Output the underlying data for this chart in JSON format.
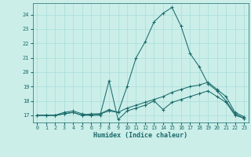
{
  "xlabel": "Humidex (Indice chaleur)",
  "background_color": "#cbeee9",
  "grid_color": "#a8ddd8",
  "line_color": "#1a6b6b",
  "xlim": [
    -0.5,
    23.5
  ],
  "ylim": [
    16.5,
    24.8
  ],
  "yticks": [
    17,
    18,
    19,
    20,
    21,
    22,
    23,
    24
  ],
  "xticks": [
    0,
    1,
    2,
    3,
    4,
    5,
    6,
    7,
    8,
    9,
    10,
    11,
    12,
    13,
    14,
    15,
    16,
    17,
    18,
    19,
    20,
    21,
    22,
    23
  ],
  "series": [
    {
      "x": [
        0,
        1,
        2,
        3,
        4,
        5,
        6,
        7,
        8,
        9,
        10,
        11,
        12,
        13,
        14,
        15,
        16,
        17,
        18,
        19,
        20,
        21,
        22,
        23
      ],
      "y": [
        17.0,
        17.0,
        17.0,
        17.2,
        17.3,
        17.1,
        17.0,
        17.0,
        19.4,
        16.7,
        17.3,
        17.5,
        17.7,
        18.0,
        17.4,
        17.9,
        18.1,
        18.3,
        18.5,
        18.7,
        18.3,
        17.9,
        17.0,
        16.8
      ]
    },
    {
      "x": [
        0,
        1,
        2,
        3,
        4,
        5,
        6,
        7,
        8,
        9,
        10,
        11,
        12,
        13,
        14,
        15,
        16,
        17,
        18,
        19,
        20,
        21,
        22,
        23
      ],
      "y": [
        17.0,
        17.0,
        17.0,
        17.1,
        17.2,
        17.0,
        17.1,
        17.1,
        17.4,
        17.2,
        17.5,
        17.7,
        17.9,
        18.1,
        18.3,
        18.6,
        18.8,
        19.0,
        19.1,
        19.3,
        18.8,
        18.3,
        17.2,
        16.9
      ]
    },
    {
      "x": [
        0,
        1,
        2,
        3,
        4,
        5,
        6,
        7,
        8,
        9,
        10,
        11,
        12,
        13,
        14,
        15,
        16,
        17,
        18,
        19,
        20,
        21,
        22,
        23
      ],
      "y": [
        17.0,
        17.0,
        17.0,
        17.1,
        17.2,
        17.0,
        17.0,
        17.1,
        17.3,
        17.2,
        19.0,
        21.0,
        22.1,
        23.5,
        24.1,
        24.5,
        23.2,
        21.3,
        20.4,
        19.2,
        18.7,
        18.0,
        17.1,
        16.8
      ]
    }
  ]
}
